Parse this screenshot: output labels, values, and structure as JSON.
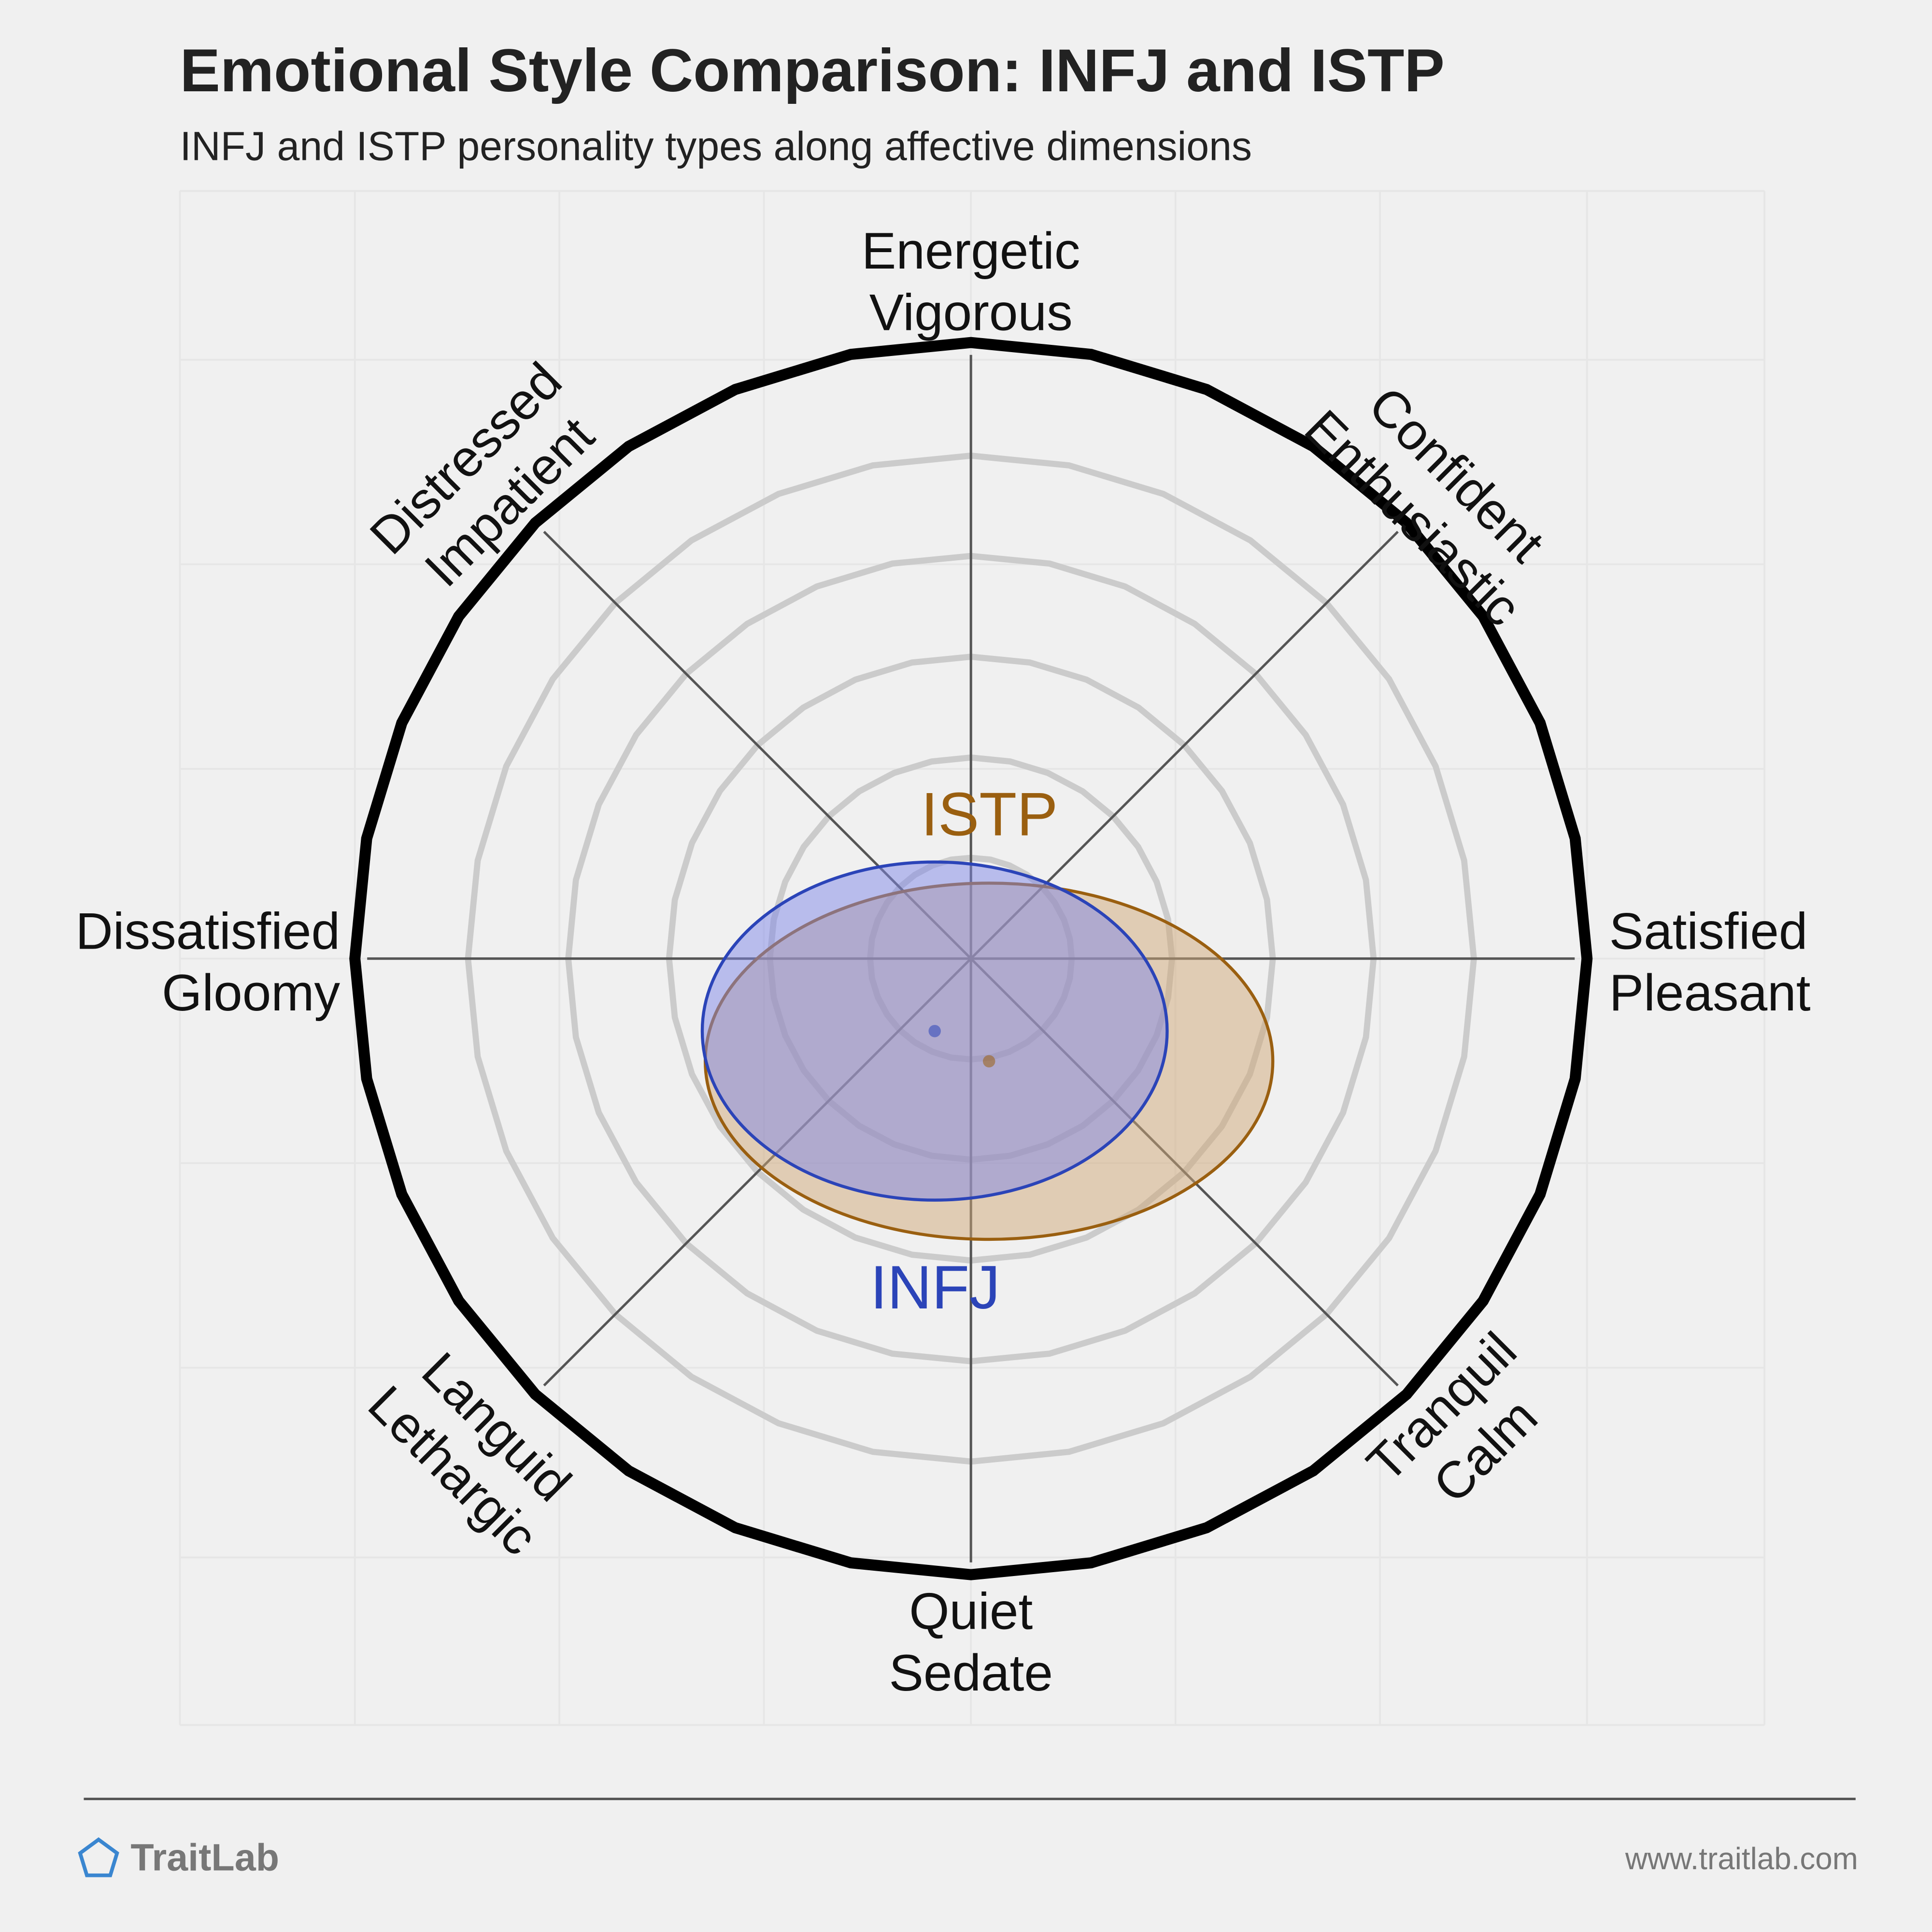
{
  "header": {
    "title": "Emotional Style Comparison: INFJ and ISTP",
    "subtitle": "INFJ and ISTP personality types along affective dimensions"
  },
  "chart_data": {
    "type": "radial-ellipse",
    "axes": [
      {
        "angle_deg": 90,
        "lines": [
          "Energetic",
          "Vigorous"
        ]
      },
      {
        "angle_deg": 45,
        "lines": [
          "Confident",
          "Enthusiastic"
        ]
      },
      {
        "angle_deg": 0,
        "lines": [
          "Satisfied",
          "Pleasant"
        ]
      },
      {
        "angle_deg": -45,
        "lines": [
          "Tranquil",
          "Calm"
        ]
      },
      {
        "angle_deg": -90,
        "lines": [
          "Quiet",
          "Sedate"
        ]
      },
      {
        "angle_deg": -135,
        "lines": [
          "Languid",
          "Lethargic"
        ]
      },
      {
        "angle_deg": 180,
        "lines": [
          "Dissatisfied",
          "Gloomy"
        ]
      },
      {
        "angle_deg": 135,
        "lines": [
          "Distressed",
          "Impatient"
        ]
      }
    ],
    "rings": [
      0.167,
      0.333,
      0.5,
      0.667,
      0.833
    ],
    "range": [
      -1,
      1
    ],
    "series": [
      {
        "name": "INFJ",
        "color": "#2b44b8",
        "fill": "#8088e8",
        "center": [
          -0.06,
          -0.12
        ],
        "radii": [
          0.77,
          0.56
        ]
      },
      {
        "name": "ISTP",
        "color": "#9a5f10",
        "fill": "#d0a878",
        "center": [
          0.03,
          -0.17
        ],
        "radii": [
          0.94,
          0.59
        ]
      }
    ]
  },
  "footer": {
    "brand": "TraitLab",
    "site": "www.traitlab.com",
    "logo_icon": "pentagon-icon",
    "logo_color": "#3a86d0"
  }
}
